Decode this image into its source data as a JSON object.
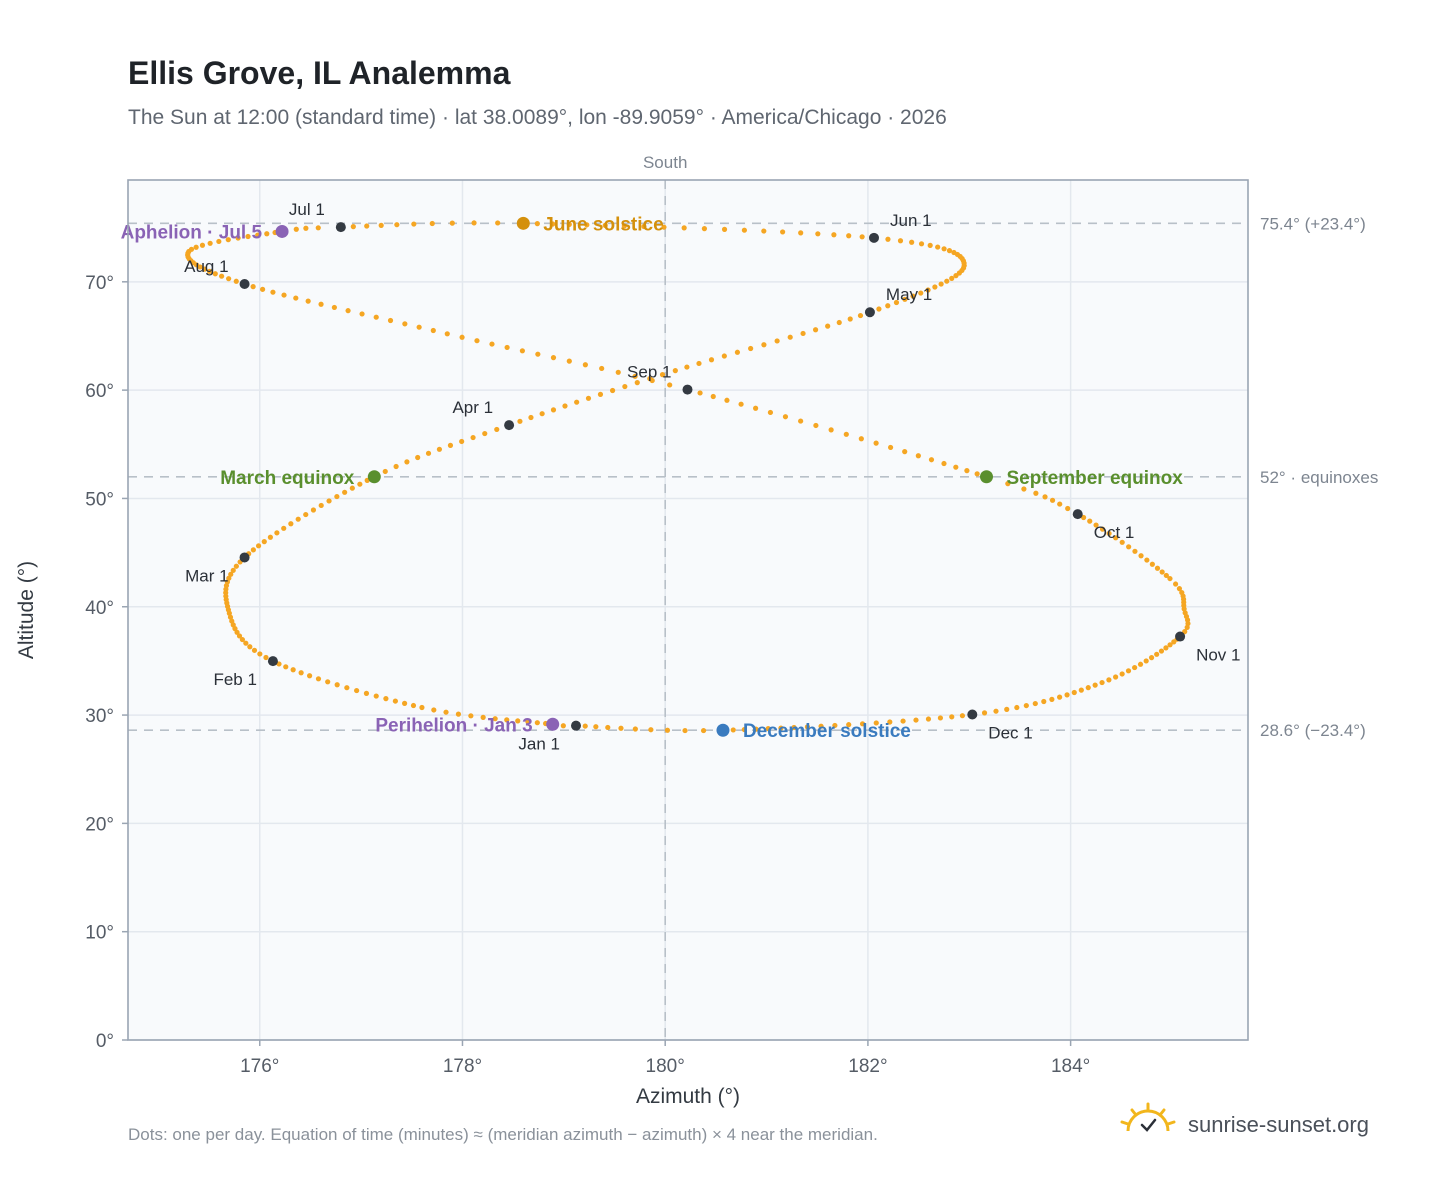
{
  "header": {
    "title": "Ellis Grove, IL Analemma",
    "subtitle": "The Sun at 12:00 (standard time) · lat 38.0089°, lon -89.9059° · America/Chicago · 2026"
  },
  "footer": {
    "note": "Dots: one per day. Equation of time (minutes) ≈ (meridian azimuth − azimuth) × 4 near the meridian.",
    "brand": "sunrise-sunset.org"
  },
  "colors": {
    "analemma": "#f5a623",
    "month_dot": "#343a42",
    "solstice_june": "#d4900c",
    "solstice_december": "#3a7bbf",
    "equinox": "#5a8f2e",
    "apsis": "#8a63b5",
    "grid": "#e3e8ee",
    "plot_bg": "#f8fafc",
    "frame": "#9aa5b3",
    "ref_line": "#b8c0c8"
  },
  "chart_data": {
    "type": "scatter",
    "title": "Ellis Grove, IL Analemma",
    "xlabel": "Azimuth (°)",
    "ylabel": "Altitude (°)",
    "xlim": [
      174.7,
      185.75
    ],
    "ylim": [
      0,
      79.4
    ],
    "x_ticks": [
      {
        "value": 176,
        "label": "176°"
      },
      {
        "value": 178,
        "label": "178°"
      },
      {
        "value": 180,
        "label": "180°"
      },
      {
        "value": 182,
        "label": "182°"
      },
      {
        "value": 184,
        "label": "184°"
      }
    ],
    "y_ticks": [
      {
        "value": 0,
        "label": "0°"
      },
      {
        "value": 10,
        "label": "10°"
      },
      {
        "value": 20,
        "label": "20°"
      },
      {
        "value": 30,
        "label": "30°"
      },
      {
        "value": 40,
        "label": "40°"
      },
      {
        "value": 50,
        "label": "50°"
      },
      {
        "value": 60,
        "label": "60°"
      },
      {
        "value": 70,
        "label": "70°"
      }
    ],
    "grid": true,
    "meridian": {
      "azimuth": 180,
      "label": "South"
    },
    "reference_lines": [
      {
        "altitude": 75.4,
        "label": "75.4° (+23.4°)"
      },
      {
        "altitude": 52,
        "label": "52° · equinoxes"
      },
      {
        "altitude": 28.6,
        "label": "28.6° (−23.4°)"
      }
    ],
    "analemma_points": [
      {
        "day": 1,
        "az": 179.12,
        "alt": 29.02
      },
      {
        "day": 3,
        "az": 178.89,
        "alt": 29.15
      },
      {
        "day": 15,
        "az": 177.6,
        "alt": 30.7
      },
      {
        "day": 32,
        "az": 176.13,
        "alt": 34.98
      },
      {
        "day": 45,
        "az": 175.7,
        "alt": 39.4
      },
      {
        "day": 60,
        "az": 175.85,
        "alt": 44.55
      },
      {
        "day": 79,
        "az": 177.13,
        "alt": 52.0
      },
      {
        "day": 91,
        "az": 178.46,
        "alt": 56.77
      },
      {
        "day": 105,
        "az": 180.1,
        "alt": 61.8
      },
      {
        "day": 121,
        "az": 182.02,
        "alt": 67.19
      },
      {
        "day": 137,
        "az": 182.95,
        "alt": 71.5
      },
      {
        "day": 152,
        "az": 182.06,
        "alt": 74.06
      },
      {
        "day": 172,
        "az": 178.6,
        "alt": 75.4
      },
      {
        "day": 182,
        "az": 176.8,
        "alt": 75.05
      },
      {
        "day": 186,
        "az": 176.22,
        "alt": 74.65
      },
      {
        "day": 198,
        "az": 175.3,
        "alt": 72.8
      },
      {
        "day": 213,
        "az": 175.85,
        "alt": 69.8
      },
      {
        "day": 229,
        "az": 177.85,
        "alt": 65.2
      },
      {
        "day": 244,
        "az": 180.22,
        "alt": 60.05
      },
      {
        "day": 266,
        "az": 183.17,
        "alt": 52.0
      },
      {
        "day": 274,
        "az": 184.07,
        "alt": 48.55
      },
      {
        "day": 290,
        "az": 184.98,
        "alt": 42.6
      },
      {
        "day": 298,
        "az": 185.12,
        "alt": 39.8
      },
      {
        "day": 305,
        "az": 185.08,
        "alt": 37.25
      },
      {
        "day": 320,
        "az": 184.31,
        "alt": 33.0
      },
      {
        "day": 335,
        "az": 183.03,
        "alt": 30.05
      },
      {
        "day": 355,
        "az": 180.57,
        "alt": 28.6
      },
      {
        "day": 365,
        "az": 179.12,
        "alt": 29.02
      }
    ],
    "month_markers": [
      {
        "label": "Jan 1",
        "az": 179.12,
        "alt": 29.02
      },
      {
        "label": "Feb 1",
        "az": 176.13,
        "alt": 34.98
      },
      {
        "label": "Mar 1",
        "az": 175.85,
        "alt": 44.55
      },
      {
        "label": "Apr 1",
        "az": 178.46,
        "alt": 56.77
      },
      {
        "label": "May 1",
        "az": 182.02,
        "alt": 67.19
      },
      {
        "label": "Jun 1",
        "az": 182.06,
        "alt": 74.06
      },
      {
        "label": "Jul 1",
        "az": 176.8,
        "alt": 75.05
      },
      {
        "label": "Aug 1",
        "az": 175.85,
        "alt": 69.8
      },
      {
        "label": "Sep 1",
        "az": 180.22,
        "alt": 60.05
      },
      {
        "label": "Oct 1",
        "az": 184.07,
        "alt": 48.55
      },
      {
        "label": "Nov 1",
        "az": 185.08,
        "alt": 37.25
      },
      {
        "label": "Dec 1",
        "az": 183.03,
        "alt": 30.05
      }
    ],
    "events": [
      {
        "label": "June solstice",
        "az": 178.6,
        "alt": 75.4,
        "kind": "solstice_june"
      },
      {
        "label": "December solstice",
        "az": 180.57,
        "alt": 28.6,
        "kind": "solstice_december"
      },
      {
        "label": "March equinox",
        "az": 177.13,
        "alt": 52.0,
        "kind": "equinox"
      },
      {
        "label": "September equinox",
        "az": 183.17,
        "alt": 52.0,
        "kind": "equinox"
      },
      {
        "label": "Aphelion · Jul 5",
        "az": 176.22,
        "alt": 74.65,
        "kind": "apsis"
      },
      {
        "label": "Perihelion · Jan 3",
        "az": 178.89,
        "alt": 29.15,
        "kind": "apsis"
      }
    ]
  }
}
